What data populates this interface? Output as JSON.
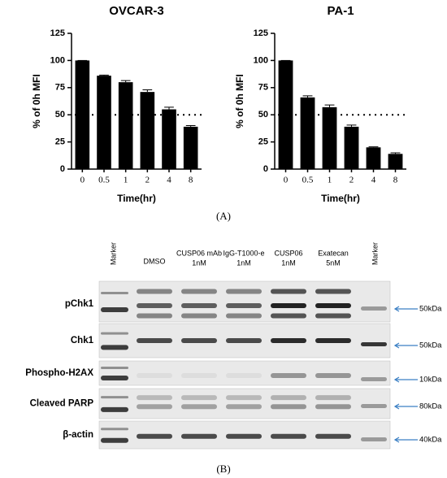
{
  "chart_data": [
    {
      "type": "bar",
      "title": "OVCAR-3",
      "xlabel": "Time(hr)",
      "ylabel": "% of 0h MFI",
      "categories": [
        "0",
        "0.5",
        "1",
        "2",
        "4",
        "8"
      ],
      "values": [
        100,
        86,
        80,
        71,
        55,
        39
      ],
      "errors": [
        0,
        0.5,
        1.5,
        2,
        2,
        1
      ],
      "color": "#000000",
      "ylim": [
        0,
        125
      ],
      "yticks": [
        0,
        25,
        50,
        75,
        100,
        125
      ],
      "reference_line": 50
    },
    {
      "type": "bar",
      "title": "PA-1",
      "xlabel": "Time(hr)",
      "ylabel": "% of 0h MFI",
      "categories": [
        "0",
        "0.5",
        "1",
        "2",
        "4",
        "8"
      ],
      "values": [
        100,
        66,
        57,
        39,
        20,
        14
      ],
      "errors": [
        0,
        1.5,
        2,
        1.5,
        0.5,
        1
      ],
      "color": "#000000",
      "ylim": [
        0,
        125
      ],
      "yticks": [
        0,
        25,
        50,
        75,
        100,
        125
      ],
      "reference_line": 50
    }
  ],
  "panel_labels": [
    "(A)",
    "(B)"
  ],
  "blot": {
    "lanes": [
      [
        "Marker"
      ],
      [
        "DMSO"
      ],
      [
        "CUSP06 mAb",
        "1nM"
      ],
      [
        "IgG-T1000-e",
        "1nM"
      ],
      [
        "CUSP06",
        "1nM"
      ],
      [
        "Exatecan",
        "5nM"
      ],
      [
        "Marker"
      ]
    ],
    "rows": [
      "pChk1",
      "Chk1",
      "Phospho-H2AX",
      "Cleaved PARP",
      "β-actin"
    ],
    "sizes": [
      "50kDa",
      "50kDa",
      "10kDa",
      "80kDa",
      "40kDa"
    ]
  }
}
